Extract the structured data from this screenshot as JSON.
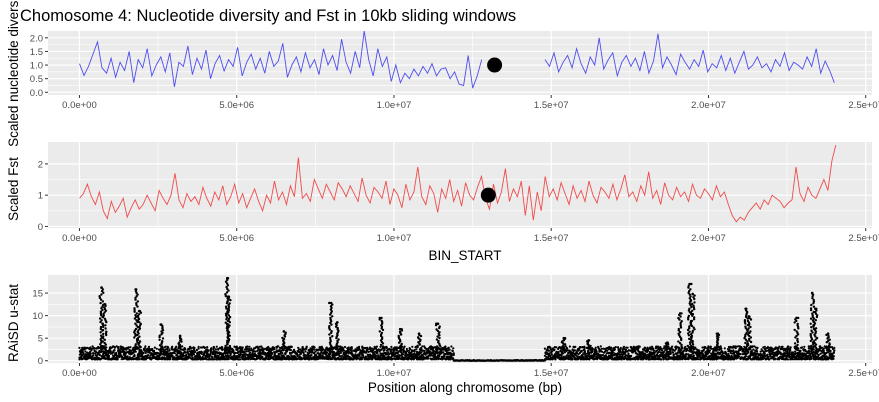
{
  "title": "Chomosome 4: Nucleotide diversity and Fst in 10kb sliding windows",
  "colors": {
    "panel_bg": "#EBEBEB",
    "grid": "#FFFFFF",
    "tick_text": "#4D4D4D",
    "pi_line": "#4D4DF0",
    "fst_line": "#F04B4B",
    "raisd_points": "#000000",
    "marker": "#000000"
  },
  "chart_data": [
    {
      "type": "line",
      "ylabel": "Scaled nucleotide diversity",
      "xlabel": "",
      "xlim": [
        -1000000,
        25200000
      ],
      "ylim": [
        -0.1,
        2.25
      ],
      "x_ticks": [
        0,
        5000000,
        10000000,
        15000000,
        20000000,
        25000000
      ],
      "x_tick_labels": [
        "0.0e+00",
        "5.0e+06",
        "1.0e+07",
        "1.5e+07",
        "2.0e+07",
        "2.5e+07"
      ],
      "y_ticks": [
        0,
        0.5,
        1,
        1.5,
        2
      ],
      "y_tick_labels": [
        "0.0",
        "0.5",
        "1.0",
        "1.5",
        "2.0"
      ],
      "series": [
        {
          "color": "#4D4DF0",
          "x_start": 0,
          "x_end": 24000000,
          "gap": [
            12800000,
            14700000
          ],
          "values": [
            1.05,
            0.62,
            0.95,
            1.4,
            1.85,
            0.9,
            0.7,
            1.25,
            0.55,
            1.1,
            0.8,
            1.5,
            0.35,
            1.2,
            0.9,
            1.6,
            0.6,
            1.0,
            1.3,
            0.75,
            1.45,
            0.2,
            1.1,
            0.95,
            1.7,
            0.65,
            1.25,
            0.85,
            1.55,
            0.5,
            1.05,
            1.35,
            0.78,
            1.2,
            0.95,
            1.65,
            0.6,
            1.1,
            1.4,
            0.85,
            1.25,
            0.7,
            1.5,
            0.95,
            1.15,
            1.8,
            0.55,
            1.0,
            1.3,
            0.75,
            1.45,
            0.9,
            1.2,
            0.65,
            1.6,
            1.0,
            1.35,
            0.8,
            1.95,
            1.1,
            0.7,
            1.5,
            0.9,
            2.25,
            1.2,
            0.6,
            1.6,
            0.95,
            1.3,
            0.4,
            1.0,
            0.35,
            0.7,
            0.5,
            0.85,
            0.6,
            0.95,
            0.7,
            1.05,
            0.6,
            0.85,
            0.9,
            0.5,
            0.75,
            0.3,
            0.25,
            1.35,
            0.15,
            0.6,
            1.2,
            1.7,
            0.8,
            1.3,
            1.05,
            1.5,
            0.85,
            1.1,
            1.4,
            0.7,
            1.25,
            1.0,
            1.55,
            0.8,
            1.2,
            0.95,
            1.45,
            0.75,
            1.1,
            1.35,
            0.9,
            1.6,
            1.05,
            0.7,
            1.3,
            1.0,
            2.0,
            0.85,
            1.2,
            1.45,
            0.6,
            1.1,
            1.35,
            0.95,
            1.25,
            0.8,
            1.5,
            0.7,
            1.15,
            2.15,
            0.9,
            1.3,
            1.0,
            0.65,
            1.4,
            1.1,
            0.85,
            1.2,
            0.95,
            1.55,
            0.75,
            1.05,
            0.9,
            1.35,
            0.8,
            1.25,
            0.7,
            1.1,
            1.5,
            0.85,
            1.0,
            1.3,
            0.9,
            1.05,
            0.75,
            1.2,
            0.95,
            1.45,
            0.8,
            1.1,
            1.0,
            0.85,
            1.3,
            0.95,
            1.6,
            0.7,
            1.15,
            0.8,
            0.35
          ]
        }
      ],
      "marker": {
        "x": 13200000,
        "y": 1.0
      }
    },
    {
      "type": "line",
      "ylabel": "Scaled Fst",
      "xlabel": "BIN_START",
      "xlim": [
        -1000000,
        25200000
      ],
      "ylim": [
        -0.05,
        2.7
      ],
      "x_ticks": [
        0,
        5000000,
        10000000,
        15000000,
        20000000,
        25000000
      ],
      "x_tick_labels": [
        "0.0e+00",
        "5.0e+06",
        "1.0e+07",
        "1.5e+07",
        "2.0e+07",
        "2.5e+07"
      ],
      "y_ticks": [
        0,
        1,
        2
      ],
      "y_tick_labels": [
        "0",
        "1",
        "2"
      ],
      "series": [
        {
          "color": "#F04B4B",
          "x_start": 0,
          "x_end": 24050000,
          "gap": null,
          "values": [
            0.9,
            1.05,
            1.35,
            0.95,
            0.7,
            1.1,
            0.5,
            0.25,
            0.8,
            0.45,
            0.65,
            0.9,
            0.3,
            0.6,
            0.85,
            0.55,
            0.7,
            1.0,
            0.75,
            0.5,
            1.15,
            0.9,
            0.7,
            1.0,
            1.7,
            0.85,
            0.6,
            1.05,
            0.8,
            0.95,
            0.7,
            1.25,
            0.9,
            0.65,
            1.1,
            0.85,
            1.3,
            0.7,
            0.95,
            1.35,
            0.75,
            1.05,
            0.6,
            0.9,
            1.2,
            0.8,
            0.5,
            1.0,
            0.75,
            1.45,
            0.85,
            1.1,
            0.7,
            1.3,
            0.95,
            2.2,
            0.9,
            1.05,
            0.8,
            1.5,
            1.2,
            0.9,
            1.35,
            1.1,
            0.85,
            1.4,
            1.2,
            0.95,
            1.3,
            1.05,
            0.8,
            1.55,
            1.0,
            0.75,
            1.25,
            1.1,
            0.9,
            1.45,
            0.7,
            1.2,
            1.0,
            0.6,
            1.35,
            0.85,
            1.1,
            1.9,
            0.95,
            0.7,
            1.3,
            1.05,
            0.45,
            1.2,
            0.9,
            1.5,
            0.8,
            1.15,
            0.65,
            1.4,
            1.0,
            0.85,
            1.25,
            1.6,
            0.9,
            0.55,
            1.35,
            0.75,
            1.1,
            1.85,
            0.8,
            1.2,
            0.95,
            1.45,
            0.35,
            1.3,
            0.2,
            1.1,
            0.5,
            1.6,
            0.95,
            1.2,
            0.85,
            1.4,
            1.05,
            0.7,
            1.3,
            0.9,
            1.15,
            0.8,
            1.45,
            1.0,
            0.75,
            1.25,
            1.1,
            0.9,
            1.35,
            0.85,
            1.2,
            1.65,
            0.95,
            1.1,
            0.8,
            1.3,
            1.0,
            1.75,
            0.9,
            1.15,
            0.7,
            1.4,
            1.0,
            0.85,
            1.25,
            0.95,
            1.1,
            0.8,
            1.35,
            1.0,
            0.9,
            1.2,
            1.05,
            0.85,
            1.3,
            0.95,
            1.1,
            0.7,
            0.35,
            0.15,
            0.3,
            0.2,
            0.45,
            0.6,
            0.75,
            0.55,
            0.85,
            0.7,
            1.0,
            0.9,
            0.8,
            0.6,
            0.75,
            0.85,
            1.9,
            1.05,
            0.8,
            1.25,
            1.0,
            0.9,
            1.2,
            1.5,
            1.15,
            2.1,
            2.6
          ]
        }
      ],
      "marker": {
        "x": 13000000,
        "y": 1.0
      }
    },
    {
      "type": "scatter",
      "ylabel": "RAiSD u-stat",
      "xlabel": "Position along chromosome (bp)",
      "xlim": [
        -1000000,
        25200000
      ],
      "ylim": [
        -0.5,
        19
      ],
      "x_ticks": [
        0,
        5000000,
        10000000,
        15000000,
        20000000,
        25000000
      ],
      "x_tick_labels": [
        "0.0e+00",
        "5.0e+06",
        "1.0e+07",
        "1.5e+07",
        "2.0e+07",
        "2.5e+07"
      ],
      "y_ticks": [
        0,
        5,
        10,
        15
      ],
      "y_tick_labels": [
        "0",
        "5",
        "10",
        "15"
      ],
      "baseline_ranges": [
        [
          0,
          11900000,
          0.3,
          3.2
        ],
        [
          11900000,
          14800000,
          0.0,
          0.15
        ],
        [
          14800000,
          24000000,
          0.3,
          3.2
        ]
      ],
      "peaks": [
        {
          "x": 700000,
          "y": 16.2
        },
        {
          "x": 800000,
          "y": 12.5
        },
        {
          "x": 1800000,
          "y": 15.8
        },
        {
          "x": 1900000,
          "y": 11.0
        },
        {
          "x": 2600000,
          "y": 8.0
        },
        {
          "x": 3200000,
          "y": 5.5
        },
        {
          "x": 4700000,
          "y": 18.3
        },
        {
          "x": 4750000,
          "y": 14.2
        },
        {
          "x": 6500000,
          "y": 6.5
        },
        {
          "x": 8000000,
          "y": 12.8
        },
        {
          "x": 8200000,
          "y": 8.5
        },
        {
          "x": 9600000,
          "y": 9.5
        },
        {
          "x": 10200000,
          "y": 7.0
        },
        {
          "x": 10800000,
          "y": 6.0
        },
        {
          "x": 11400000,
          "y": 8.2
        },
        {
          "x": 15400000,
          "y": 5.0
        },
        {
          "x": 16200000,
          "y": 4.5
        },
        {
          "x": 18700000,
          "y": 4.0
        },
        {
          "x": 19100000,
          "y": 10.5
        },
        {
          "x": 19400000,
          "y": 17.0
        },
        {
          "x": 19500000,
          "y": 14.8
        },
        {
          "x": 20300000,
          "y": 6.0
        },
        {
          "x": 21200000,
          "y": 11.5
        },
        {
          "x": 21300000,
          "y": 9.8
        },
        {
          "x": 22800000,
          "y": 9.5
        },
        {
          "x": 23300000,
          "y": 15.0
        },
        {
          "x": 23400000,
          "y": 11.5
        },
        {
          "x": 23800000,
          "y": 6.0
        }
      ]
    }
  ]
}
